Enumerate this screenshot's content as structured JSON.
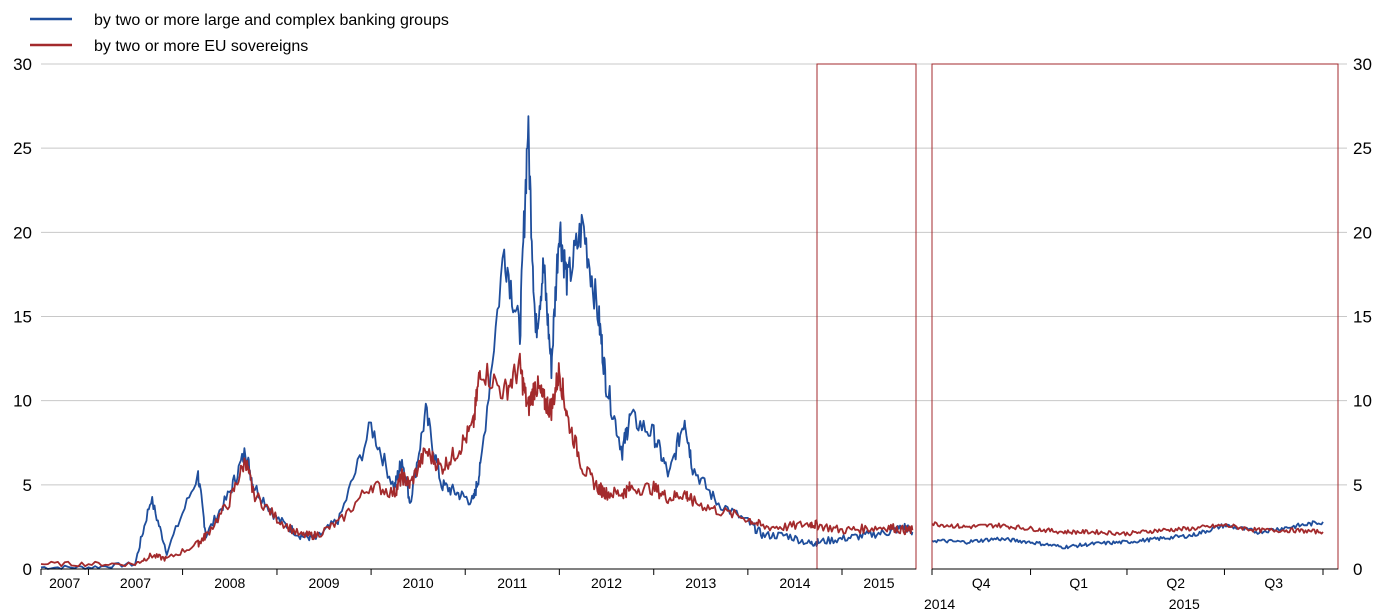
{
  "chart_data": [
    {
      "type": "line",
      "title": "",
      "xlabel": "",
      "ylabel": "",
      "ylim": [
        0,
        30
      ],
      "yticks": [
        0,
        5,
        10,
        15,
        20,
        25,
        30
      ],
      "grid": true,
      "legend_placement": "top-left",
      "x_tick_labels": [
        "2007",
        "2007",
        "2008",
        "2009",
        "2010",
        "2011",
        "2012",
        "2013",
        "2014",
        "2015"
      ],
      "x": [
        "2006-07",
        "2007-01",
        "2007-07",
        "2007-09",
        "2007-11",
        "2008-03",
        "2008-04",
        "2008-07",
        "2008-09",
        "2008-10",
        "2009-01",
        "2009-04",
        "2009-06",
        "2009-09",
        "2010-01",
        "2010-04",
        "2010-05",
        "2010-06",
        "2010-08",
        "2010-10",
        "2010-12",
        "2011-02",
        "2011-03",
        "2011-06",
        "2011-08",
        "2011-09",
        "2011-10",
        "2011-11",
        "2011-12",
        "2012-01",
        "2012-02",
        "2012-04",
        "2012-06",
        "2012-07",
        "2012-09",
        "2012-10",
        "2013-01",
        "2013-03",
        "2013-05",
        "2013-06",
        "2013-09",
        "2014-01",
        "2014-03",
        "2014-06",
        "2014-09",
        "2014-10",
        "2015-01",
        "2015-04",
        "2015-07",
        "2015-09",
        "2015-10"
      ],
      "series": [
        {
          "name": "by two or more large and complex banking groups",
          "color": "#1f4e9c",
          "values": [
            0.1,
            0.1,
            0.3,
            4.2,
            1.0,
            5.6,
            2.0,
            4.5,
            7.0,
            5.0,
            3.0,
            2.0,
            1.8,
            3.0,
            8.5,
            4.8,
            6.5,
            4.0,
            9.3,
            5.0,
            4.5,
            4.0,
            6.0,
            19.0,
            14.0,
            26.3,
            14.0,
            18.0,
            12.0,
            20.5,
            17.0,
            20.5,
            15.0,
            11.0,
            7.0,
            9.0,
            8.0,
            5.5,
            9.0,
            6.0,
            4.0,
            2.8,
            2.0,
            2.0,
            1.5,
            1.6,
            1.8,
            2.0,
            2.2,
            2.5,
            2.2
          ]
        },
        {
          "name": "by two or more EU sovereigns",
          "color": "#a32a2c",
          "values": [
            0.3,
            0.3,
            0.3,
            0.8,
            0.6,
            1.5,
            2.0,
            4.0,
            6.5,
            4.5,
            3.0,
            2.0,
            2.0,
            2.8,
            5.0,
            4.5,
            5.5,
            5.0,
            7.0,
            6.0,
            7.0,
            8.5,
            12.0,
            10.5,
            12.0,
            9.5,
            11.0,
            10.0,
            9.5,
            11.8,
            9.0,
            6.0,
            4.8,
            4.5,
            4.5,
            4.8,
            4.8,
            4.2,
            4.5,
            4.0,
            3.5,
            3.0,
            2.5,
            2.5,
            2.7,
            2.6,
            2.3,
            2.4,
            2.5,
            2.3,
            2.3
          ]
        }
      ]
    },
    {
      "type": "line",
      "title": "",
      "xlabel": "",
      "ylabel": "",
      "ylim": [
        0,
        30
      ],
      "yticks": [
        0,
        5,
        10,
        15,
        20,
        25,
        30
      ],
      "grid": true,
      "x_tick_labels": [
        "Q4",
        "Q1",
        "Q2",
        "Q3"
      ],
      "x_year_labels": [
        "2014",
        "2015"
      ],
      "x": [
        "2014-10-01",
        "2014-11-01",
        "2014-12-01",
        "2015-01-01",
        "2015-02-01",
        "2015-03-01",
        "2015-04-01",
        "2015-05-01",
        "2015-06-01",
        "2015-07-01",
        "2015-08-01",
        "2015-09-01",
        "2015-10-01"
      ],
      "series": [
        {
          "name": "by two or more large and complex banking groups",
          "color": "#1f4e9c",
          "values": [
            1.7,
            1.6,
            1.8,
            1.6,
            1.3,
            1.5,
            1.6,
            1.8,
            2.0,
            2.6,
            2.2,
            2.5,
            2.8
          ]
        },
        {
          "name": "by two or more EU sovereigns",
          "color": "#a32a2c",
          "values": [
            2.7,
            2.5,
            2.6,
            2.4,
            2.2,
            2.2,
            2.1,
            2.3,
            2.4,
            2.6,
            2.3,
            2.3,
            2.2
          ]
        }
      ]
    }
  ]
}
